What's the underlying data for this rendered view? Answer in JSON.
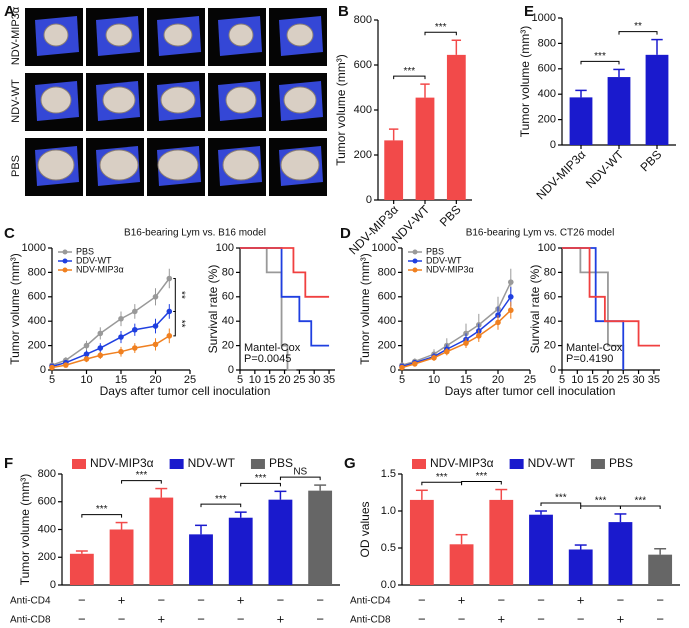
{
  "panel_a": {
    "panel": "A",
    "row_labels": [
      "NDV-MIP3α",
      "NDV-WT",
      "PBS"
    ]
  },
  "chart_data": [
    {
      "type": "bar",
      "panel": "B",
      "ylabel": "Tumor volume (mm³)",
      "categories": [
        "NDV-MIP3α",
        "NDV-WT",
        "PBS"
      ],
      "values": [
        265,
        455,
        645
      ],
      "errors": [
        50,
        60,
        65
      ],
      "color": "#f24a4a",
      "ylim": [
        0,
        800
      ],
      "yticks": [
        0,
        200,
        400,
        600,
        800
      ],
      "significance": [
        "***",
        "***"
      ]
    },
    {
      "type": "bar",
      "panel": "E",
      "ylabel": "Tumor volume (mm³)",
      "categories": [
        "NDV-MIP3α",
        "NDV-WT",
        "PBS"
      ],
      "values": [
        375,
        535,
        710
      ],
      "errors": [
        55,
        60,
        120
      ],
      "color": "#1a1acd",
      "ylim": [
        0,
        1000
      ],
      "yticks": [
        0,
        200,
        400,
        600,
        800,
        1000
      ],
      "significance": [
        "***",
        "**"
      ]
    },
    {
      "type": "line",
      "panel": "C",
      "title": "B16-bearing Lym vs. B16 model",
      "xlabel": "Days after tumor cell inoculation",
      "ylabel": "Tumor volume (mm³)",
      "x": [
        5,
        7,
        10,
        12,
        15,
        17,
        20,
        22
      ],
      "series": [
        {
          "name": "PBS",
          "color": "#999999",
          "values": [
            40,
            80,
            200,
            300,
            420,
            480,
            600,
            750
          ],
          "errors": [
            15,
            25,
            40,
            50,
            60,
            60,
            70,
            80
          ]
        },
        {
          "name": "DDV-WT",
          "color": "#1f3fe0",
          "values": [
            30,
            60,
            130,
            180,
            270,
            330,
            360,
            480
          ],
          "errors": [
            10,
            20,
            30,
            40,
            50,
            50,
            60,
            60
          ]
        },
        {
          "name": "NDV-MIP3α",
          "color": "#f08020",
          "values": [
            20,
            40,
            90,
            120,
            150,
            180,
            210,
            280
          ],
          "errors": [
            10,
            15,
            25,
            30,
            40,
            40,
            50,
            60
          ]
        }
      ],
      "xlim": [
        5,
        25
      ],
      "xticks": [
        5,
        10,
        15,
        20,
        25
      ],
      "ylim": [
        0,
        1000
      ],
      "yticks": [
        0,
        200,
        400,
        600,
        800,
        1000
      ],
      "significance": [
        "**",
        "**"
      ]
    },
    {
      "type": "step",
      "ylabel": "Survival rate (%)",
      "annotation": [
        "Mantel-Cox",
        "P=0.0045"
      ],
      "series": [
        {
          "color": "#999999",
          "x": [
            5,
            14,
            19,
            21,
            24
          ],
          "values": [
            100,
            80,
            20,
            0,
            0
          ]
        },
        {
          "color": "#1f3fe0",
          "x": [
            5,
            19,
            25,
            29,
            35
          ],
          "values": [
            100,
            60,
            40,
            20,
            20
          ]
        },
        {
          "color": "#f04040",
          "x": [
            5,
            23,
            27,
            35
          ],
          "values": [
            100,
            80,
            60,
            60
          ]
        }
      ],
      "xlim": [
        5,
        37
      ],
      "xticks": [
        5,
        10,
        15,
        20,
        25,
        30,
        35
      ],
      "ylim": [
        0,
        100
      ],
      "yticks": [
        0,
        20,
        40,
        60,
        80,
        100
      ]
    },
    {
      "type": "line",
      "panel": "D",
      "title": "B16-bearing  Lym vs. CT26 model",
      "xlabel": "Days after tumor cell inoculation",
      "ylabel": "Tumor volume (mm³)",
      "x": [
        5,
        7,
        10,
        12,
        15,
        17,
        20,
        22
      ],
      "series": [
        {
          "name": "PBS",
          "color": "#999999",
          "values": [
            40,
            70,
            130,
            200,
            300,
            370,
            500,
            720
          ],
          "errors": [
            15,
            25,
            40,
            60,
            80,
            90,
            100,
            110
          ]
        },
        {
          "name": "DDV-WT",
          "color": "#1f3fe0",
          "values": [
            30,
            60,
            110,
            170,
            250,
            320,
            450,
            600
          ],
          "errors": [
            10,
            20,
            30,
            40,
            50,
            60,
            70,
            80
          ]
        },
        {
          "name": "NDV-MIP3α",
          "color": "#f08020",
          "values": [
            20,
            50,
            100,
            150,
            220,
            280,
            390,
            490
          ],
          "errors": [
            10,
            15,
            25,
            30,
            40,
            50,
            60,
            70
          ]
        }
      ],
      "xlim": [
        5,
        25
      ],
      "xticks": [
        5,
        10,
        15,
        20,
        25
      ],
      "ylim": [
        0,
        1000
      ],
      "yticks": [
        0,
        200,
        400,
        600,
        800,
        1000
      ]
    },
    {
      "type": "step",
      "ylabel": "Survival rate (%)",
      "annotation": [
        "Mantel-Cox",
        "P=0.4190"
      ],
      "series": [
        {
          "color": "#999999",
          "x": [
            5,
            11,
            20,
            25
          ],
          "values": [
            100,
            80,
            20,
            0
          ]
        },
        {
          "color": "#1f3fe0",
          "x": [
            5,
            16,
            25
          ],
          "values": [
            100,
            40,
            0
          ]
        },
        {
          "color": "#f04040",
          "x": [
            5,
            14,
            19,
            30,
            37
          ],
          "values": [
            100,
            60,
            40,
            20,
            20
          ]
        }
      ],
      "xlim": [
        5,
        37
      ],
      "xticks": [
        5,
        10,
        15,
        20,
        25,
        30,
        35
      ],
      "ylim": [
        0,
        100
      ],
      "yticks": [
        0,
        20,
        40,
        60,
        80,
        100
      ]
    },
    {
      "type": "bar",
      "panel": "F",
      "ylabel": "Tumor volume (mm³)",
      "values": [
        225,
        400,
        630,
        365,
        485,
        615,
        680
      ],
      "errors": [
        20,
        50,
        65,
        65,
        40,
        60,
        40
      ],
      "bar_colors": [
        "#f24a4a",
        "#f24a4a",
        "#f24a4a",
        "#1a1acd",
        "#1a1acd",
        "#1a1acd",
        "#666666"
      ],
      "legend": [
        {
          "name": "NDV-MIP3α",
          "color": "#f24a4a"
        },
        {
          "name": "NDV-WT",
          "color": "#1a1acd"
        },
        {
          "name": "PBS",
          "color": "#666666"
        }
      ],
      "treatments": [
        {
          "name": "Anti-CD4",
          "signs": [
            "−",
            "+",
            "−",
            "−",
            "+",
            "−",
            "−"
          ]
        },
        {
          "name": "Anti-CD8",
          "signs": [
            "−",
            "−",
            "+",
            "−",
            "−",
            "+",
            "−"
          ]
        }
      ],
      "ylim": [
        0,
        800
      ],
      "yticks": [
        0,
        200,
        400,
        600,
        800
      ],
      "significance": [
        "***",
        "***",
        "***",
        "***",
        "NS"
      ]
    },
    {
      "type": "bar",
      "panel": "G",
      "ylabel": "OD values",
      "values": [
        1.15,
        0.55,
        1.15,
        0.95,
        0.48,
        0.85,
        0.41
      ],
      "errors": [
        0.13,
        0.13,
        0.14,
        0.05,
        0.06,
        0.11,
        0.08
      ],
      "bar_colors": [
        "#f24a4a",
        "#f24a4a",
        "#f24a4a",
        "#1a1acd",
        "#1a1acd",
        "#1a1acd",
        "#666666"
      ],
      "legend": [
        {
          "name": "NDV-MIP3α",
          "color": "#f24a4a"
        },
        {
          "name": "NDV-WT",
          "color": "#1a1acd"
        },
        {
          "name": "PBS",
          "color": "#666666"
        }
      ],
      "treatments": [
        {
          "name": "Anti-CD4",
          "signs": [
            "−",
            "+",
            "−",
            "−",
            "+",
            "−",
            "−"
          ]
        },
        {
          "name": "Anti-CD8",
          "signs": [
            "−",
            "−",
            "+",
            "−",
            "−",
            "+",
            "−"
          ]
        }
      ],
      "ylim": [
        0,
        1.5
      ],
      "yticks": [
        {
          "value": 0,
          "label": "0.0"
        },
        0.5,
        {
          "value": 1,
          "label": "1.0"
        },
        1.5
      ],
      "significance": [
        "***",
        "***",
        "***",
        "***",
        "***"
      ]
    }
  ]
}
